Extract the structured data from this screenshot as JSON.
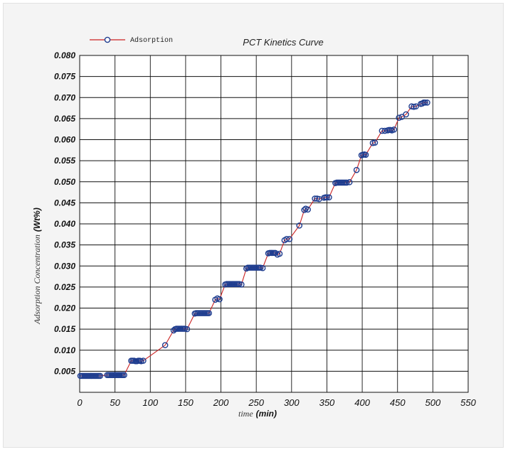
{
  "chart_data": {
    "type": "line",
    "title": "PCT Kinetics Curve",
    "xlabel": {
      "text": "time",
      "unit": "(min)"
    },
    "ylabel": {
      "text": "Adsorption Concentration",
      "unit": "(Wt%)"
    },
    "xlim": [
      0,
      550
    ],
    "ylim": [
      0,
      0.08
    ],
    "x_ticks": [
      "0",
      "50",
      "100",
      "150",
      "200",
      "250",
      "300",
      "350",
      "400",
      "450",
      "500",
      "550"
    ],
    "y_ticks": [
      "0.005",
      "0.010",
      "0.015",
      "0.020",
      "0.025",
      "0.030",
      "0.035",
      "0.040",
      "0.045",
      "0.050",
      "0.055",
      "0.060",
      "0.065",
      "0.070",
      "0.075",
      "0.080"
    ],
    "grid": true,
    "legend_position": "top-left",
    "series": [
      {
        "name": "Adsorption",
        "line_color": "#cc2222",
        "marker_color": "#1f3d8f",
        "points": [
          [
            1,
            0.0039
          ],
          [
            3,
            0.0039
          ],
          [
            5,
            0.0039
          ],
          [
            7,
            0.0039
          ],
          [
            9,
            0.0039
          ],
          [
            11,
            0.0039
          ],
          [
            13,
            0.0039
          ],
          [
            15,
            0.0039
          ],
          [
            17,
            0.0039
          ],
          [
            19,
            0.0039
          ],
          [
            21,
            0.0039
          ],
          [
            23,
            0.0039
          ],
          [
            25,
            0.0039
          ],
          [
            27,
            0.0039
          ],
          [
            29,
            0.0039
          ],
          [
            39,
            0.0041
          ],
          [
            41,
            0.0041
          ],
          [
            43,
            0.0041
          ],
          [
            45,
            0.0041
          ],
          [
            47,
            0.0041
          ],
          [
            49,
            0.0041
          ],
          [
            51,
            0.0041
          ],
          [
            53,
            0.0041
          ],
          [
            55,
            0.0041
          ],
          [
            57,
            0.0041
          ],
          [
            59,
            0.0041
          ],
          [
            61,
            0.0041
          ],
          [
            63,
            0.0041
          ],
          [
            73,
            0.0075
          ],
          [
            75,
            0.0075
          ],
          [
            77,
            0.0075
          ],
          [
            79,
            0.0074
          ],
          [
            81,
            0.0074
          ],
          [
            83,
            0.0075
          ],
          [
            85,
            0.0075
          ],
          [
            87,
            0.0074
          ],
          [
            90,
            0.0075
          ],
          [
            121,
            0.0112
          ],
          [
            133,
            0.0147
          ],
          [
            135,
            0.015
          ],
          [
            137,
            0.0151
          ],
          [
            139,
            0.0151
          ],
          [
            141,
            0.0151
          ],
          [
            143,
            0.0151
          ],
          [
            145,
            0.0151
          ],
          [
            147,
            0.0151
          ],
          [
            149,
            0.0151
          ],
          [
            152,
            0.015
          ],
          [
            163,
            0.0187
          ],
          [
            165,
            0.0188
          ],
          [
            167,
            0.0188
          ],
          [
            169,
            0.0188
          ],
          [
            171,
            0.0188
          ],
          [
            173,
            0.0188
          ],
          [
            175,
            0.0188
          ],
          [
            177,
            0.0188
          ],
          [
            179,
            0.0188
          ],
          [
            181,
            0.0188
          ],
          [
            183,
            0.0188
          ],
          [
            192,
            0.022
          ],
          [
            195,
            0.0223
          ],
          [
            198,
            0.0221
          ],
          [
            206,
            0.0256
          ],
          [
            208,
            0.0257
          ],
          [
            210,
            0.0257
          ],
          [
            212,
            0.0257
          ],
          [
            214,
            0.0257
          ],
          [
            216,
            0.0257
          ],
          [
            218,
            0.0257
          ],
          [
            220,
            0.0257
          ],
          [
            222,
            0.0257
          ],
          [
            224,
            0.0257
          ],
          [
            226,
            0.0257
          ],
          [
            229,
            0.0256
          ],
          [
            236,
            0.0294
          ],
          [
            238,
            0.0296
          ],
          [
            240,
            0.0296
          ],
          [
            242,
            0.0296
          ],
          [
            244,
            0.0296
          ],
          [
            246,
            0.0296
          ],
          [
            248,
            0.0296
          ],
          [
            250,
            0.0296
          ],
          [
            252,
            0.0296
          ],
          [
            254,
            0.0296
          ],
          [
            256,
            0.0296
          ],
          [
            259,
            0.0295
          ],
          [
            267,
            0.033
          ],
          [
            269,
            0.0331
          ],
          [
            271,
            0.0331
          ],
          [
            273,
            0.0331
          ],
          [
            275,
            0.0331
          ],
          [
            277,
            0.0331
          ],
          [
            280,
            0.0327
          ],
          [
            283,
            0.0329
          ],
          [
            290,
            0.0361
          ],
          [
            293,
            0.0364
          ],
          [
            297,
            0.0364
          ],
          [
            311,
            0.0396
          ],
          [
            318,
            0.0433
          ],
          [
            320,
            0.0436
          ],
          [
            323,
            0.0434
          ],
          [
            333,
            0.046
          ],
          [
            336,
            0.046
          ],
          [
            339,
            0.0459
          ],
          [
            346,
            0.0462
          ],
          [
            348,
            0.0463
          ],
          [
            350,
            0.0463
          ],
          [
            353,
            0.0463
          ],
          [
            362,
            0.0497
          ],
          [
            364,
            0.0498
          ],
          [
            366,
            0.0498
          ],
          [
            368,
            0.0498
          ],
          [
            370,
            0.0498
          ],
          [
            372,
            0.0498
          ],
          [
            374,
            0.0498
          ],
          [
            376,
            0.0498
          ],
          [
            378,
            0.0498
          ],
          [
            382,
            0.0499
          ],
          [
            392,
            0.0528
          ],
          [
            399,
            0.0563
          ],
          [
            401,
            0.0564
          ],
          [
            403,
            0.0565
          ],
          [
            405,
            0.0564
          ],
          [
            415,
            0.0592
          ],
          [
            418,
            0.0593
          ],
          [
            428,
            0.0621
          ],
          [
            432,
            0.0621
          ],
          [
            436,
            0.0622
          ],
          [
            438,
            0.0623
          ],
          [
            440,
            0.0623
          ],
          [
            442,
            0.0622
          ],
          [
            445,
            0.0624
          ],
          [
            452,
            0.0652
          ],
          [
            456,
            0.0654
          ],
          [
            462,
            0.066
          ],
          [
            470,
            0.0679
          ],
          [
            473,
            0.0678
          ],
          [
            476,
            0.0679
          ],
          [
            483,
            0.0685
          ],
          [
            485,
            0.0686
          ],
          [
            487,
            0.0688
          ],
          [
            489,
            0.0688
          ],
          [
            492,
            0.0688
          ]
        ]
      }
    ]
  }
}
